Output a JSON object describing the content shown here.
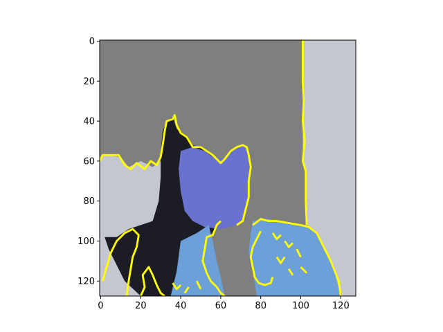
{
  "chart_data": {
    "type": "image",
    "title": "",
    "xlabel": "",
    "ylabel": "",
    "xlim": [
      -0.5,
      127.5
    ],
    "ylim": [
      127.5,
      -0.5
    ],
    "y_inverted": true,
    "grid": false,
    "x_ticks": [
      0,
      20,
      40,
      60,
      80,
      100,
      120
    ],
    "y_ticks": [
      0,
      20,
      40,
      60,
      80,
      100,
      120
    ],
    "x_tick_labels": [
      "0",
      "20",
      "40",
      "60",
      "80",
      "100",
      "120"
    ],
    "y_tick_labels": [
      "0",
      "20",
      "40",
      "60",
      "80",
      "100",
      "120"
    ],
    "background_color": "#7f7f7f",
    "wall_color": "#c4c6d0",
    "skin_color": "#6a72d0",
    "hair_color": "#1c1c24",
    "shirt_color": "#6d9fd8",
    "boundary_color": "#ffff00"
  }
}
